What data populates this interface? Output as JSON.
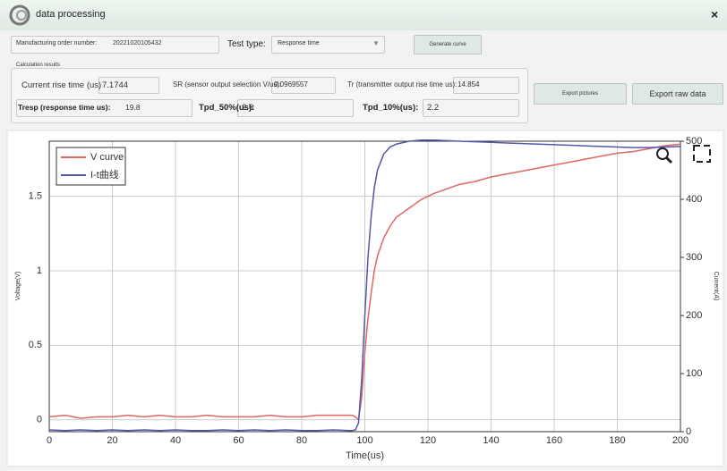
{
  "window": {
    "title": "data processing",
    "close": "×"
  },
  "form": {
    "order_label": "Manufacturing order number:",
    "order_value": "20221020105432",
    "test_type_label": "Test type:",
    "test_type_value": "Response time",
    "generate_button": "Generate curve"
  },
  "results": {
    "group_label": "Calculation results",
    "fields": [
      {
        "label": "Current rise time (us)",
        "value": "7.1744"
      },
      {
        "label": "SR (sensor output selection V/us):",
        "value": "0.0969557"
      },
      {
        "label": "Tr (transmitter output rise time us):",
        "value": "14.854"
      },
      {
        "label": "Tresp (response time us):",
        "value": "19.8"
      },
      {
        "label": "Tpd_50%(us):",
        "value": "2.6"
      },
      {
        "label": "Tpd_10%(us):",
        "value": "2.2"
      }
    ]
  },
  "buttons": {
    "export_pictures": "Export pictures",
    "export_raw": "Export raw data"
  },
  "chart_data": {
    "type": "line",
    "xlabel": "Time(us)",
    "ylabel": "Voltage(V)",
    "y2label": "Current(A)",
    "x": [
      0,
      5,
      10,
      15,
      20,
      25,
      30,
      35,
      40,
      45,
      50,
      55,
      60,
      65,
      70,
      75,
      80,
      85,
      90,
      95,
      96,
      97,
      98,
      99,
      100,
      101,
      102,
      103,
      104,
      106,
      108,
      110,
      114,
      118,
      122,
      126,
      130,
      135,
      140,
      145,
      150,
      155,
      160,
      165,
      170,
      175,
      180,
      185,
      190,
      195,
      200
    ],
    "series": [
      {
        "name": "V curve",
        "color": "#e06666",
        "values": [
          0.02,
          0.03,
          0.01,
          0.02,
          0.02,
          0.03,
          0.02,
          0.03,
          0.02,
          0.02,
          0.03,
          0.02,
          0.02,
          0.02,
          0.03,
          0.02,
          0.02,
          0.03,
          0.03,
          0.03,
          0.03,
          0.02,
          0.0,
          0.15,
          0.45,
          0.68,
          0.85,
          1.0,
          1.1,
          1.22,
          1.3,
          1.36,
          1.42,
          1.48,
          1.52,
          1.55,
          1.58,
          1.6,
          1.63,
          1.65,
          1.67,
          1.69,
          1.71,
          1.73,
          1.75,
          1.77,
          1.79,
          1.8,
          1.82,
          1.84,
          1.85
        ]
      },
      {
        "name": "I-t曲线",
        "color": "#5555aa",
        "axis": "y2",
        "values": [
          3,
          2,
          3,
          2,
          3,
          2,
          3,
          2,
          3,
          2,
          2,
          3,
          2,
          3,
          2,
          3,
          2,
          2,
          3,
          2,
          2,
          3,
          15,
          90,
          200,
          300,
          370,
          420,
          450,
          478,
          490,
          495,
          500,
          502,
          502,
          501,
          500,
          499,
          498,
          497,
          496,
          495,
          494,
          493,
          492,
          491,
          490,
          489,
          489,
          490,
          491
        ]
      }
    ],
    "xlim": [
      0,
      200
    ],
    "xticks": [
      0,
      20,
      40,
      60,
      80,
      100,
      120,
      140,
      160,
      180,
      200
    ],
    "ylim": [
      -0.08,
      1.87
    ],
    "yticks": [
      0,
      0.5,
      1,
      1.5
    ],
    "y2lim": [
      0,
      500
    ],
    "y2ticks": [
      0,
      100,
      200,
      300,
      400,
      500
    ],
    "grid": true,
    "legend": "upper left"
  }
}
